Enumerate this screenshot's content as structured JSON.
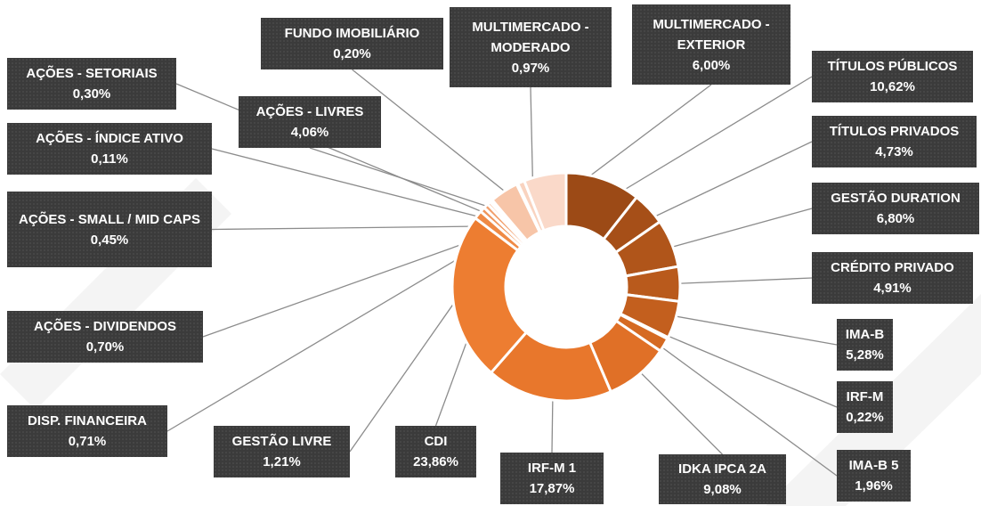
{
  "chart_data": {
    "type": "donut",
    "categories": [
      "TÍTULOS PÚBLICOS",
      "TÍTULOS PRIVADOS",
      "GESTÃO DURATION",
      "CRÉDITO PRIVADO",
      "IMA-B",
      "IRF-M",
      "IMA-B 5",
      "IDKA IPCA 2A",
      "IRF-M 1",
      "CDI",
      "GESTÃO LIVRE",
      "DISP. FINANCEIRA",
      "AÇÕES - DIVIDENDOS",
      "AÇÕES - SMALL / MID CAPS",
      "AÇÕES - ÍNDICE ATIVO",
      "AÇÕES - SETORIAIS",
      "AÇÕES - LIVRES",
      "FUNDO IMOBILIÁRIO",
      "MULTIMERCADO - MODERADO",
      "MULTIMERCADO - EXTERIOR"
    ],
    "values": [
      10.62,
      4.73,
      6.8,
      4.91,
      5.28,
      0.22,
      1.96,
      9.08,
      17.87,
      23.86,
      1.21,
      0.71,
      0.7,
      0.45,
      0.11,
      0.3,
      4.06,
      0.2,
      0.97,
      6.0
    ],
    "value_labels": [
      "10,62%",
      "4,73%",
      "6,80%",
      "4,91%",
      "5,28%",
      "0,22%",
      "1,96%",
      "9,08%",
      "17,87%",
      "23,86%",
      "1,21%",
      "0,71%",
      "0,70%",
      "0,45%",
      "0,11%",
      "0,30%",
      "4,06%",
      "0,20%",
      "0,97%",
      "6,00%"
    ],
    "colors": [
      "#9c4a16",
      "#a64f18",
      "#b0551a",
      "#b95a1c",
      "#c35f1e",
      "#cc6420",
      "#d56a23",
      "#e07027",
      "#e8772c",
      "#ed7d31",
      "#ef8a45",
      "#f0955a",
      "#f2a06d",
      "#f3aa7d",
      "#f5b48d",
      "#f6bd9b",
      "#f7c5a8",
      "#f8ccb4",
      "#f9d3bf",
      "#fad9c9"
    ]
  }
}
